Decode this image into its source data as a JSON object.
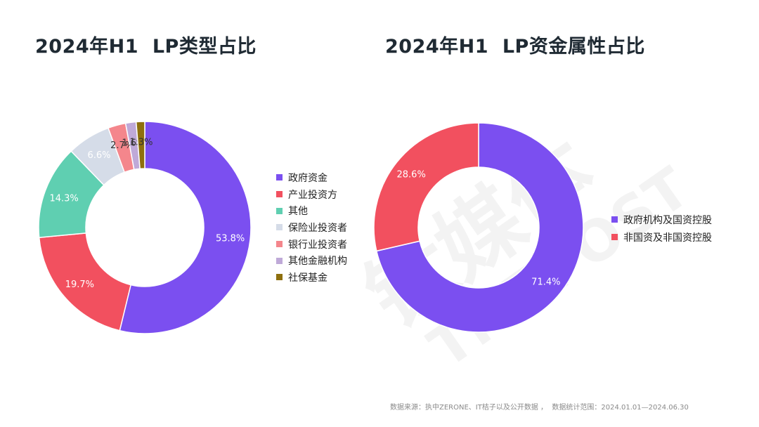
{
  "watermark": {
    "text": "钛媒体",
    "subtext": "TMTPOST",
    "color": "#f3f3f3"
  },
  "chart_data": [
    {
      "type": "pie",
      "title": "2024年H1  LP类型占比",
      "categories": [
        "政府资金",
        "产业投资方",
        "其他",
        "保险业投资者",
        "银行业投资者",
        "其他金融机构",
        "社保基金"
      ],
      "values": [
        53.8,
        19.7,
        14.3,
        6.6,
        2.7,
        1.6,
        1.3
      ],
      "labels": [
        "53.8%",
        "19.7%",
        "14.3%",
        "6.6%",
        "2.7%",
        "1.6%",
        "1.3%"
      ],
      "colors": [
        "#7b4ff0",
        "#f2505f",
        "#5fcfb1",
        "#d5dce8",
        "#f4868c",
        "#bfa9d8",
        "#8e6f0e"
      ],
      "label_colors": [
        "#ffffff",
        "#ffffff",
        "#ffffff",
        "#ffffff",
        "#333333",
        "#333333",
        "#333333"
      ],
      "legend_position": "right",
      "donut": true
    },
    {
      "type": "pie",
      "title": "2024年H1  LP资金属性占比",
      "categories": [
        "政府机构及国资控股",
        "非国资及非国资控股"
      ],
      "values": [
        71.4,
        28.6
      ],
      "labels": [
        "71.4%",
        "28.6%"
      ],
      "colors": [
        "#7b4ff0",
        "#f2505f"
      ],
      "label_colors": [
        "#ffffff",
        "#ffffff"
      ],
      "legend_position": "right",
      "donut": true
    }
  ],
  "footer": {
    "source": "数据来源：执中ZERONE、IT桔子以及公开数据 ，  数据统计范围：2024.01.01—2024.06.30"
  }
}
